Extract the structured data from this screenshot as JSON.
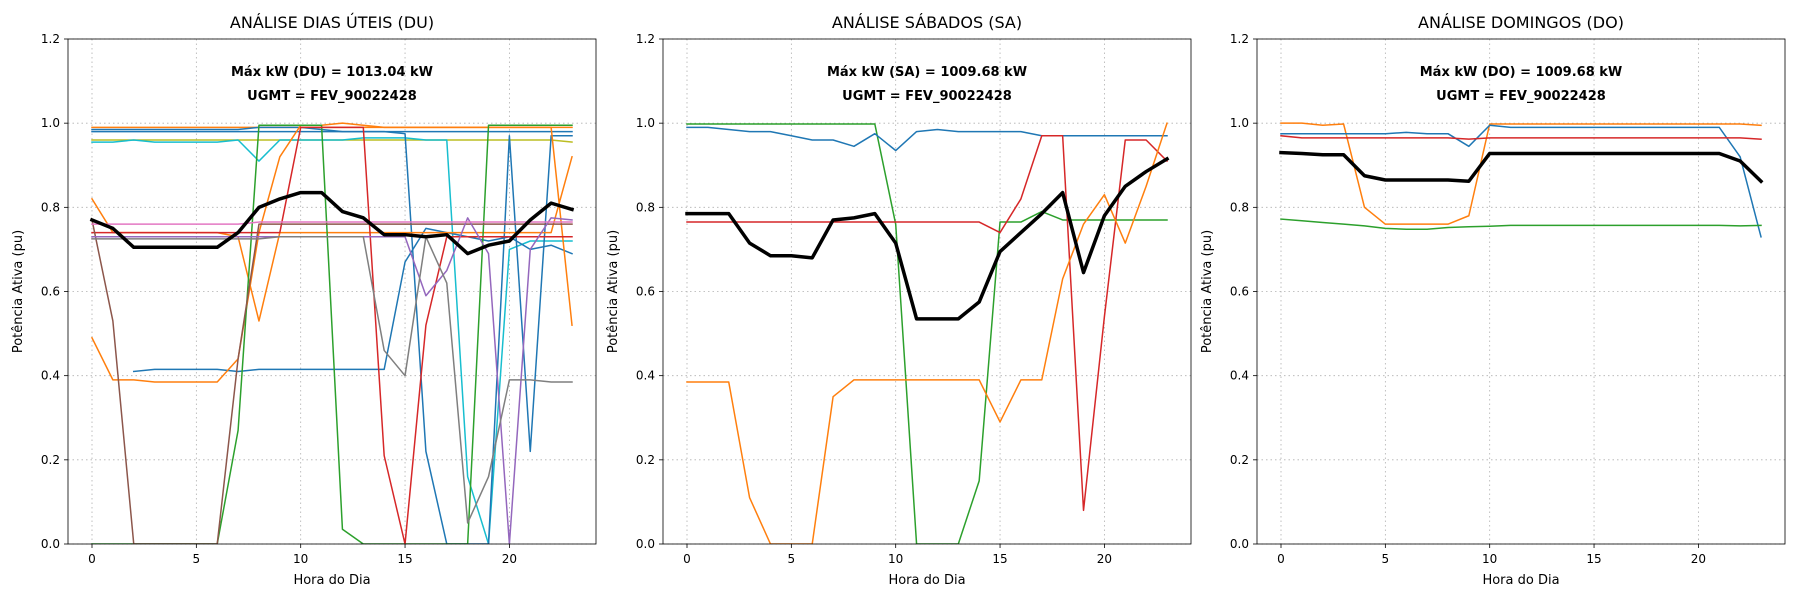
{
  "chart_data": [
    {
      "type": "line",
      "title": "ANÁLISE DIAS ÚTEIS (DU)",
      "xlabel": "Hora do Dia",
      "ylabel": "Potência Ativa (pu)",
      "xlim": [
        -1.15,
        24.15
      ],
      "ylim": [
        0,
        1.2
      ],
      "xticks": [
        0,
        5,
        10,
        15,
        20
      ],
      "yticks": [
        0.0,
        0.2,
        0.4,
        0.6,
        0.8,
        1.0,
        1.2
      ],
      "grid": true,
      "annotations": [
        "Máx kW (DU) = 1013.04 kW",
        "UGMT = FEV_90022428"
      ],
      "series": [
        {
          "color": "#ff7f0e",
          "values": [
            0.99,
            0.99,
            0.99,
            0.99,
            0.99,
            0.99,
            0.99,
            0.99,
            0.99,
            0.99,
            0.99,
            0.99,
            0.99,
            0.99,
            0.99,
            0.99,
            0.99,
            0.99,
            0.99,
            0.99,
            0.99,
            0.99,
            0.99,
            0.99
          ]
        },
        {
          "color": "#1f77b4",
          "values": [
            0.98,
            0.98,
            0.98,
            0.98,
            0.98,
            0.98,
            0.98,
            0.98,
            0.98,
            0.98,
            0.98,
            0.98,
            0.98,
            0.98,
            0.98,
            0.98,
            0.98,
            0.98,
            0.98,
            0.98,
            0.98,
            0.98,
            0.98,
            0.98
          ]
        },
        {
          "color": "#bcbd22",
          "values": [
            0.96,
            0.96,
            0.96,
            0.96,
            0.96,
            0.96,
            0.96,
            0.96,
            0.96,
            0.96,
            0.96,
            0.96,
            0.96,
            0.96,
            0.96,
            0.96,
            0.96,
            0.96,
            0.96,
            0.96,
            0.96,
            0.96,
            0.96,
            0.955
          ]
        },
        {
          "color": "#17becf",
          "values": [
            0.955,
            0.955,
            0.96,
            0.955,
            0.955,
            0.955,
            0.955,
            0.96,
            0.91,
            0.96,
            0.96,
            0.96,
            0.96,
            0.965,
            0.965,
            0.965,
            0.96,
            0.96,
            0.16,
            0.0,
            0.7,
            0.72,
            0.72,
            0.72
          ]
        },
        {
          "color": "#1f77b4",
          "values": [
            null,
            null,
            0.41,
            0.415,
            0.415,
            0.415,
            0.415,
            0.41,
            0.415,
            0.415,
            0.415,
            0.415,
            0.415,
            0.415,
            0.415,
            0.67,
            0.75,
            0.74,
            0.73,
            0.72,
            0.73,
            0.7,
            0.71,
            0.69
          ]
        },
        {
          "color": "#1f77b4",
          "values": [
            0.985,
            0.985,
            0.985,
            0.985,
            0.985,
            0.985,
            0.985,
            0.985,
            0.99,
            0.99,
            0.99,
            0.985,
            0.98,
            0.98,
            0.98,
            0.975,
            0.22,
            0.0,
            0.0,
            0.0,
            0.97,
            0.22,
            0.97,
            0.97
          ]
        },
        {
          "color": "#ff7f0e",
          "values": [
            0.82,
            0.74,
            0.74,
            0.74,
            0.74,
            0.74,
            0.74,
            0.73,
            0.53,
            0.74,
            0.74,
            0.74,
            0.74,
            0.74,
            0.74,
            0.74,
            0.74,
            0.74,
            0.74,
            0.74,
            0.74,
            0.74,
            0.74,
            0.92
          ]
        },
        {
          "color": "#ff7f0e",
          "values": [
            0.49,
            0.39,
            0.39,
            0.385,
            0.385,
            0.385,
            0.385,
            0.44,
            0.74,
            0.92,
            0.995,
            0.995,
            1.0,
            0.995,
            0.99,
            0.99,
            0.99,
            0.99,
            0.99,
            0.99,
            0.99,
            0.99,
            0.99,
            0.52
          ]
        },
        {
          "color": "#2ca02c",
          "values": [
            0.0,
            0.0,
            0.0,
            0.0,
            0.0,
            0.0,
            0.0,
            0.27,
            0.995,
            0.995,
            0.995,
            0.995,
            0.035,
            0.0,
            0.0,
            0.0,
            0.0,
            0.0,
            0.0,
            0.995,
            0.995,
            0.995,
            0.995,
            0.995
          ]
        },
        {
          "color": "#d62728",
          "values": [
            0.74,
            0.74,
            0.74,
            0.74,
            0.74,
            0.74,
            0.74,
            0.74,
            0.74,
            0.74,
            0.99,
            0.99,
            0.99,
            0.99,
            0.21,
            0.0,
            0.52,
            0.73,
            0.73,
            0.73,
            0.73,
            0.73,
            0.73,
            0.73
          ]
        },
        {
          "color": "#8c564b",
          "values": [
            0.77,
            0.53,
            0.0,
            0.0,
            0.0,
            0.0,
            0.0,
            0.44,
            0.76,
            0.76,
            0.76,
            0.76,
            0.76,
            0.76,
            0.76,
            0.76,
            0.76,
            0.76,
            0.76,
            0.76,
            0.76,
            0.76,
            0.76,
            0.76
          ]
        },
        {
          "color": "#9467bd",
          "values": [
            0.73,
            0.73,
            0.73,
            0.73,
            0.73,
            0.73,
            0.73,
            0.73,
            0.73,
            0.73,
            0.73,
            0.73,
            0.73,
            0.73,
            0.73,
            0.73,
            0.59,
            0.65,
            0.775,
            0.69,
            0.0,
            0.7,
            0.775,
            0.77
          ]
        },
        {
          "color": "#7f7f7f",
          "values": [
            0.725,
            0.725,
            0.725,
            0.725,
            0.725,
            0.725,
            0.725,
            0.725,
            0.725,
            0.73,
            0.73,
            0.73,
            0.73,
            0.73,
            0.46,
            0.4,
            0.73,
            0.62,
            0.05,
            0.16,
            0.39,
            0.39,
            0.385,
            0.385
          ]
        },
        {
          "color": "#e377c2",
          "values": [
            0.76,
            0.76,
            0.76,
            0.76,
            0.76,
            0.76,
            0.76,
            0.76,
            0.765,
            0.765,
            0.765,
            0.765,
            0.765,
            0.765,
            0.765,
            0.765,
            0.765,
            0.765,
            0.765,
            0.765,
            0.765,
            0.765,
            0.765,
            0.765
          ]
        },
        {
          "color": "#000000",
          "width": 3.5,
          "values": [
            0.77,
            0.75,
            0.705,
            0.705,
            0.705,
            0.705,
            0.705,
            0.74,
            0.8,
            0.82,
            0.835,
            0.835,
            0.79,
            0.775,
            0.735,
            0.735,
            0.73,
            0.735,
            0.69,
            0.71,
            0.72,
            0.77,
            0.81,
            0.795
          ]
        }
      ]
    },
    {
      "type": "line",
      "title": "ANÁLISE SÁBADOS (SA)",
      "xlabel": "Hora do Dia",
      "ylabel": "Potência Ativa (pu)",
      "xlim": [
        -1.15,
        24.15
      ],
      "ylim": [
        0,
        1.2
      ],
      "xticks": [
        0,
        5,
        10,
        15,
        20
      ],
      "yticks": [
        0.0,
        0.2,
        0.4,
        0.6,
        0.8,
        1.0,
        1.2
      ],
      "grid": true,
      "annotations": [
        "Máx kW (SA) = 1009.68 kW",
        "UGMT = FEV_90022428"
      ],
      "series": [
        {
          "color": "#2ca02c",
          "values": [
            0.998,
            0.998,
            0.998,
            0.998,
            0.998,
            0.998,
            0.998,
            0.998,
            0.998,
            0.998,
            0.76,
            0.0,
            0.0,
            0.0,
            0.15,
            0.765,
            0.765,
            0.79,
            0.77,
            0.77,
            0.77,
            0.77,
            0.77,
            0.77
          ]
        },
        {
          "color": "#1f77b4",
          "values": [
            0.99,
            0.99,
            0.985,
            0.98,
            0.98,
            0.97,
            0.96,
            0.96,
            0.945,
            0.975,
            0.935,
            0.98,
            0.985,
            0.98,
            0.98,
            0.98,
            0.98,
            0.97,
            0.97,
            0.97,
            0.97,
            0.97,
            0.97,
            0.97
          ]
        },
        {
          "color": "#d62728",
          "values": [
            0.765,
            0.765,
            0.765,
            0.765,
            0.765,
            0.765,
            0.765,
            0.765,
            0.765,
            0.765,
            0.765,
            0.765,
            0.765,
            0.765,
            0.765,
            0.74,
            0.82,
            0.97,
            0.97,
            0.08,
            0.54,
            0.96,
            0.96,
            0.91
          ]
        },
        {
          "color": "#ff7f0e",
          "values": [
            0.385,
            0.385,
            0.385,
            0.11,
            0.0,
            0.0,
            0.0,
            0.35,
            0.39,
            0.39,
            0.39,
            0.39,
            0.39,
            0.39,
            0.39,
            0.29,
            0.39,
            0.39,
            0.63,
            0.76,
            0.83,
            0.715,
            0.85,
            1.0
          ]
        },
        {
          "color": "#000000",
          "width": 3.5,
          "values": [
            0.785,
            0.785,
            0.785,
            0.715,
            0.685,
            0.685,
            0.68,
            0.77,
            0.775,
            0.785,
            0.715,
            0.535,
            0.535,
            0.535,
            0.575,
            0.695,
            0.74,
            0.785,
            0.835,
            0.645,
            0.78,
            0.85,
            0.885,
            0.915
          ]
        }
      ]
    },
    {
      "type": "line",
      "title": "ANÁLISE DOMINGOS (DO)",
      "xlabel": "Hora do Dia",
      "ylabel": "Potência Ativa (pu)",
      "xlim": [
        -1.15,
        24.15
      ],
      "ylim": [
        0,
        1.2
      ],
      "xticks": [
        0,
        5,
        10,
        15,
        20
      ],
      "yticks": [
        0.0,
        0.2,
        0.4,
        0.6,
        0.8,
        1.0,
        1.2
      ],
      "grid": true,
      "annotations": [
        "Máx kW (DO) = 1009.68 kW",
        "UGMT = FEV_90022428"
      ],
      "series": [
        {
          "color": "#ff7f0e",
          "values": [
            1.0,
            1.0,
            0.995,
            0.998,
            0.8,
            0.76,
            0.76,
            0.76,
            0.76,
            0.78,
            0.998,
            0.998,
            0.998,
            0.998,
            0.998,
            0.998,
            0.998,
            0.998,
            0.998,
            0.998,
            0.998,
            0.998,
            0.998,
            0.995
          ]
        },
        {
          "color": "#1f77b4",
          "values": [
            0.975,
            0.975,
            0.975,
            0.975,
            0.975,
            0.975,
            0.978,
            0.975,
            0.975,
            0.945,
            0.995,
            0.99,
            0.99,
            0.99,
            0.99,
            0.99,
            0.99,
            0.99,
            0.99,
            0.99,
            0.99,
            0.99,
            0.92,
            0.73
          ]
        },
        {
          "color": "#d62728",
          "values": [
            0.97,
            0.965,
            0.965,
            0.965,
            0.965,
            0.965,
            0.965,
            0.965,
            0.965,
            0.962,
            0.965,
            0.965,
            0.965,
            0.965,
            0.965,
            0.965,
            0.965,
            0.965,
            0.965,
            0.965,
            0.965,
            0.965,
            0.965,
            0.962
          ]
        },
        {
          "color": "#2ca02c",
          "values": [
            0.772,
            0.768,
            0.764,
            0.76,
            0.756,
            0.75,
            0.748,
            0.748,
            0.752,
            0.754,
            0.755,
            0.757,
            0.757,
            0.757,
            0.757,
            0.757,
            0.757,
            0.757,
            0.757,
            0.757,
            0.757,
            0.757,
            0.756,
            0.757
          ]
        },
        {
          "color": "#000000",
          "width": 3.5,
          "values": [
            0.93,
            0.928,
            0.925,
            0.925,
            0.875,
            0.865,
            0.865,
            0.865,
            0.865,
            0.862,
            0.928,
            0.928,
            0.928,
            0.928,
            0.928,
            0.928,
            0.928,
            0.928,
            0.928,
            0.928,
            0.928,
            0.928,
            0.91,
            0.862
          ]
        }
      ]
    }
  ]
}
